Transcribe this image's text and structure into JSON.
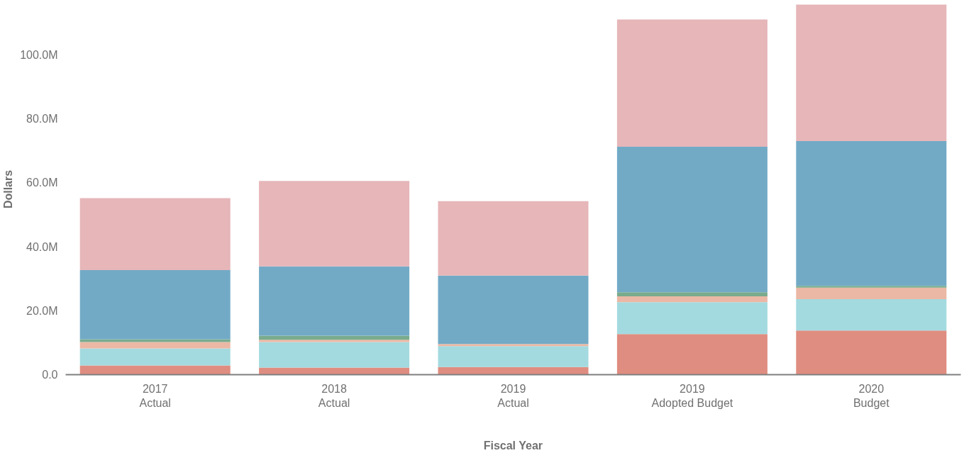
{
  "chart_data": {
    "type": "bar",
    "stacked": true,
    "xlabel": "Fiscal Year",
    "ylabel": "Dollars",
    "categories": [
      "2017\nActual",
      "2018\nActual",
      "2019\nActual",
      "2019\nAdopted Budget",
      "2020\nBudget"
    ],
    "series": [
      {
        "color": "#df8d80",
        "values": [
          2.9,
          2.2,
          2.4,
          12.7,
          13.8
        ]
      },
      {
        "color": "#a3dadf",
        "values": [
          5.3,
          8.0,
          6.5,
          10.0,
          9.8
        ]
      },
      {
        "color": "#ebb8a5",
        "values": [
          2.0,
          0.7,
          0.7,
          1.8,
          3.6
        ]
      },
      {
        "color": "#79ab8d",
        "values": [
          0.9,
          1.3,
          null,
          1.3,
          0.6
        ]
      },
      {
        "color": "#72aac6",
        "values": [
          21.6,
          21.7,
          21.4,
          45.5,
          45.3
        ]
      },
      {
        "color": "#e6b6b9",
        "values": [
          22.5,
          26.7,
          23.3,
          39.8,
          42.7
        ]
      }
    ],
    "yticks": [
      {
        "value": 0,
        "label": "0.0"
      },
      {
        "value": 20,
        "label": "20.0M"
      },
      {
        "value": 40,
        "label": "40.0M"
      },
      {
        "value": 60,
        "label": "60.0M"
      },
      {
        "value": 80,
        "label": "80.0M"
      },
      {
        "value": 100,
        "label": "100.0M"
      }
    ],
    "ylim": [
      0,
      116
    ],
    "grid": false
  }
}
